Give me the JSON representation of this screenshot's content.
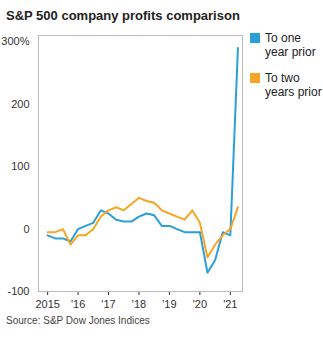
{
  "chart_data": {
    "type": "line",
    "title": "S&P 500 company profits comparison",
    "source": "Source: S&P Dow Jones Indices",
    "x": [
      2015,
      2015.25,
      2015.5,
      2015.75,
      2016,
      2016.25,
      2016.5,
      2016.75,
      2017,
      2017.25,
      2017.5,
      2017.75,
      2018,
      2018.25,
      2018.5,
      2018.75,
      2019,
      2019.25,
      2019.5,
      2019.75,
      2020,
      2020.25,
      2020.5,
      2020.75,
      2021,
      2021.25
    ],
    "series": [
      {
        "name": "To one year prior",
        "color": "#2a9fd8",
        "values": [
          -10,
          -15,
          -15,
          -20,
          0,
          5,
          10,
          30,
          25,
          15,
          12,
          12,
          20,
          25,
          22,
          5,
          5,
          0,
          -5,
          -5,
          -5,
          -70,
          -50,
          -5,
          -10,
          290
        ]
      },
      {
        "name": "To two years prior",
        "color": "#f5a623",
        "values": [
          -5,
          -5,
          0,
          -25,
          -10,
          -10,
          0,
          20,
          30,
          35,
          30,
          40,
          50,
          45,
          42,
          30,
          25,
          20,
          15,
          30,
          10,
          -45,
          -25,
          -10,
          0,
          35
        ]
      }
    ],
    "xlim": [
      2014.7,
      2021.4
    ],
    "xticks": [
      2015,
      {
        "value": 2016,
        "label": "'16"
      },
      {
        "value": 2017,
        "label": "'17"
      },
      {
        "value": 2018,
        "label": "'18"
      },
      {
        "value": 2019,
        "label": "'19"
      },
      {
        "value": 2020,
        "label": "'20"
      },
      {
        "value": 2021,
        "label": "'21"
      }
    ],
    "ylim": [
      -100,
      310
    ],
    "yticks": [
      -100,
      0,
      100,
      200,
      {
        "value": 300,
        "label": "300%"
      }
    ],
    "grid": false,
    "legend": "right"
  }
}
